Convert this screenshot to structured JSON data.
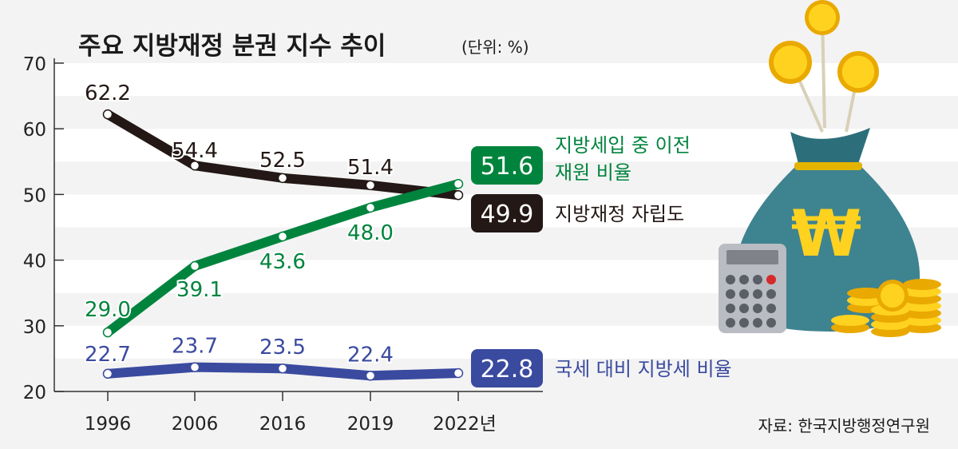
{
  "chart_data": {
    "type": "line",
    "title": "주요 지방재정 분권 지수 추이",
    "unit_label": "(단위: %)",
    "categories": [
      "1996",
      "2006",
      "2016",
      "2019",
      "2022년"
    ],
    "ylim": [
      20,
      70
    ],
    "yticks": [
      "20",
      "30",
      "40",
      "50",
      "60",
      "70"
    ],
    "grid": "alternating horizontal bands",
    "series": [
      {
        "name": "지방재정 자립도",
        "color": "#231815",
        "values": [
          62.2,
          54.4,
          52.5,
          51.4,
          49.9
        ],
        "labels": [
          "62.2",
          "54.4",
          "52.5",
          "51.4",
          "49.9"
        ]
      },
      {
        "name": "지방세입 중 이전 재원 비율",
        "name_lines": [
          "지방세입 중 이전",
          "재원 비율"
        ],
        "color": "#00843d",
        "values": [
          29.0,
          39.1,
          43.6,
          48.0,
          51.6
        ],
        "labels": [
          "29.0",
          "39.1",
          "43.6",
          "48.0",
          "51.6"
        ]
      },
      {
        "name": "국세 대비 지방세 비율",
        "color": "#3a4a9f",
        "values": [
          22.7,
          23.7,
          23.5,
          22.4,
          22.8
        ],
        "labels": [
          "22.7",
          "23.7",
          "23.5",
          "22.4",
          "22.8"
        ]
      }
    ],
    "source": "자료: 한국지방행정연구원",
    "illustration_icons": [
      "money-bag-won-icon",
      "coins-icon",
      "calculator-icon"
    ]
  }
}
